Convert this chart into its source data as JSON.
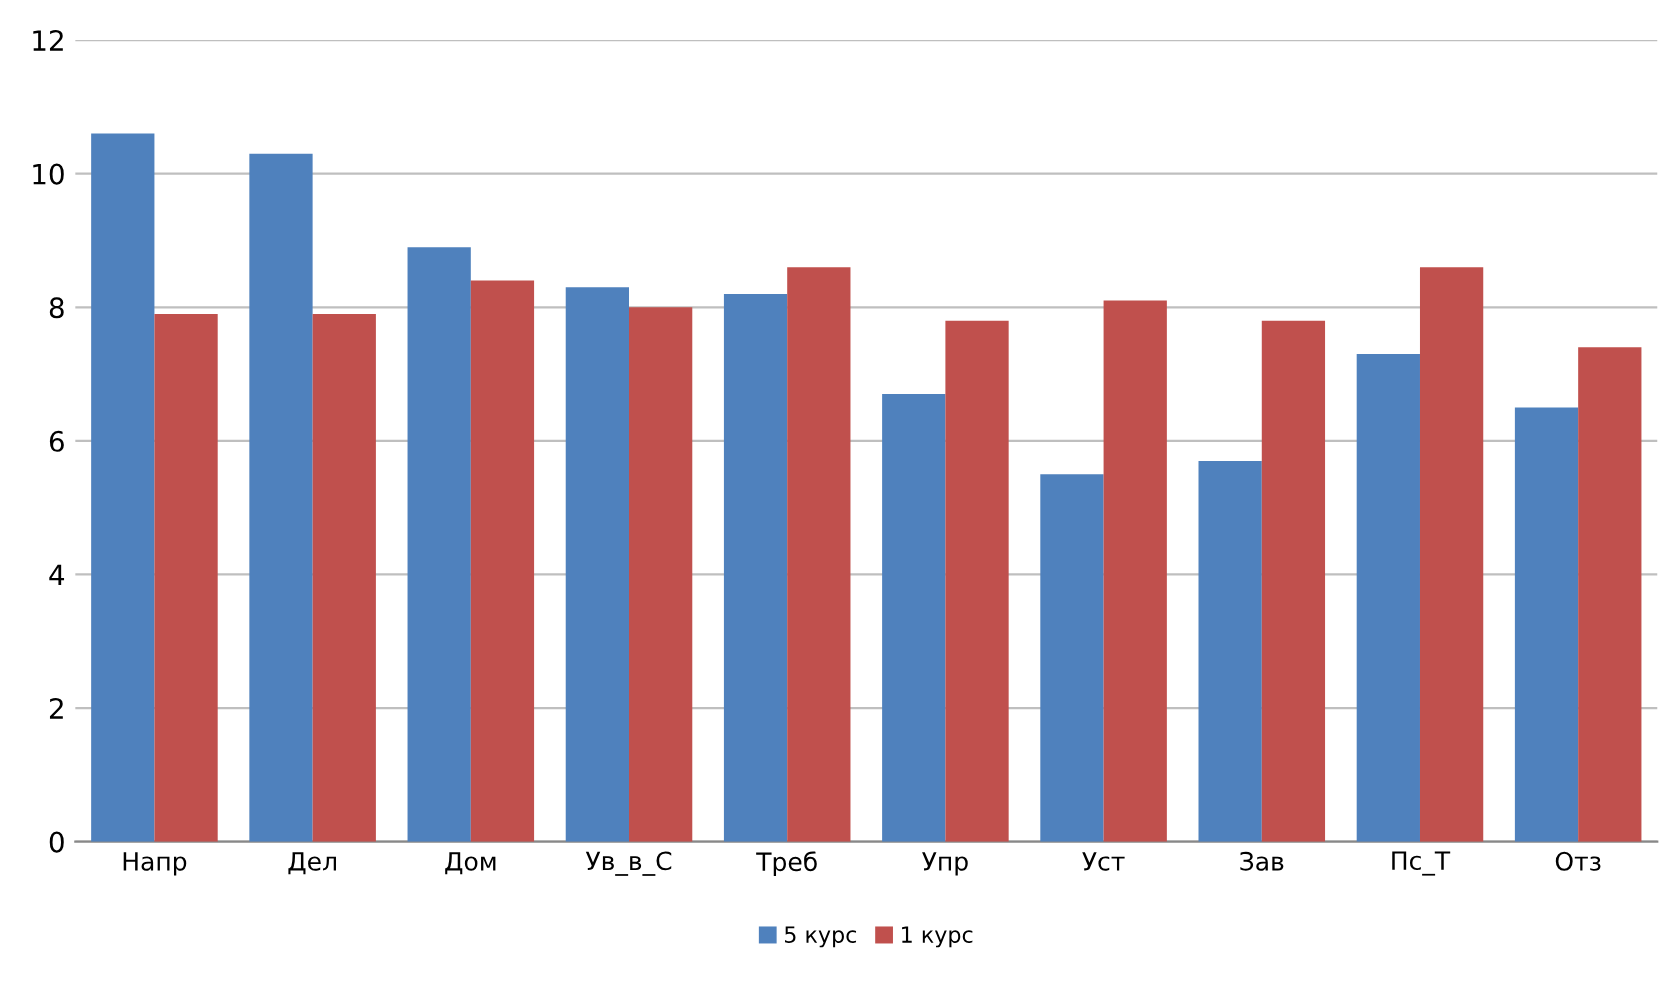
{
  "chart_data": {
    "type": "bar",
    "categories": [
      "Напр",
      "Дел",
      "Дом",
      "Ув_в_С",
      "Треб",
      "Упр",
      "Уст",
      "Зав",
      "Пс_Т",
      "Отз"
    ],
    "series": [
      {
        "name": "5 курс",
        "color": "#4f81bd",
        "values": [
          10.6,
          10.3,
          8.9,
          8.3,
          8.2,
          6.7,
          5.5,
          5.7,
          7.3,
          6.5
        ]
      },
      {
        "name": "1 курс",
        "color": "#c0504d",
        "values": [
          7.9,
          7.9,
          8.4,
          8.0,
          8.6,
          7.8,
          8.1,
          7.8,
          8.6,
          7.4
        ]
      }
    ],
    "ylim": [
      0,
      12
    ],
    "yticks": [
      0,
      2,
      4,
      6,
      8,
      10,
      12
    ],
    "grid": "y",
    "legend": "bottom"
  }
}
